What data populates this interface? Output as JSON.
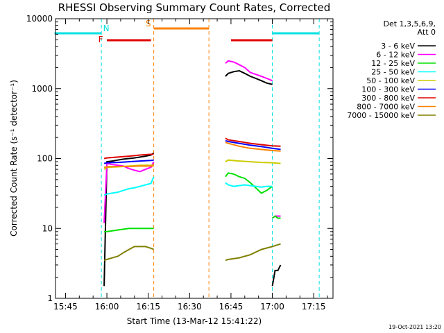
{
  "chart_data": {
    "type": "line",
    "title": "RHESSI Observing Summary Count Rates, Corrected",
    "xlabel": "Start Time (13-Mar-12 15:41:22)",
    "ylabel": "Corrected Count Rate (s⁻¹ detector⁻¹)",
    "y_scale": "log",
    "ylim": [
      1,
      10000
    ],
    "xlim": [
      "15:41:22",
      "17:22:00"
    ],
    "x_ticks": [
      "15:45",
      "16:00",
      "16:15",
      "16:30",
      "16:45",
      "17:00",
      "17:15"
    ],
    "y_ticks": [
      "1",
      "10",
      "100",
      "1000",
      "10000"
    ],
    "legend_header": [
      "Det 1,3,5,6,9,",
      "Att 0"
    ],
    "legend_position": "right",
    "timestamp": "19-Oct-2021 13:20",
    "flags": [
      {
        "label": "N",
        "color": "#00e0e0",
        "spans": [
          [
            "15:41",
            "15:58"
          ],
          [
            "17:00",
            "17:17"
          ]
        ]
      },
      {
        "label": "F",
        "color": "#e00000",
        "spans": [
          [
            "16:00",
            "16:16"
          ],
          [
            "16:45",
            "17:00"
          ]
        ]
      },
      {
        "label": "S",
        "color": "#ff8000",
        "spans": [
          [
            "16:17",
            "16:37"
          ]
        ]
      }
    ],
    "series": [
      {
        "name": "3 - 6 keV",
        "color": "#000000",
        "segments": [
          {
            "x": [
              "15:59",
              "16:00",
              "16:02",
              "16:04",
              "16:06",
              "16:08",
              "16:10",
              "16:12",
              "16:14",
              "16:16",
              "16:17"
            ],
            "y": [
              1.5,
              90,
              92,
              95,
              98,
              100,
              102,
              105,
              108,
              112,
              120
            ]
          },
          {
            "x": [
              "16:43",
              "16:44",
              "16:46",
              "16:48",
              "16:50",
              "16:52",
              "16:54",
              "16:56",
              "16:58",
              "17:00"
            ],
            "y": [
              1500,
              1650,
              1750,
              1800,
              1650,
              1500,
              1400,
              1300,
              1200,
              1150
            ]
          },
          {
            "x": [
              "17:00",
              "17:01",
              "17:02",
              "17:03"
            ],
            "y": [
              1.5,
              2.5,
              2.5,
              3
            ]
          }
        ]
      },
      {
        "name": "6 - 12 keV",
        "color": "#ff00ff",
        "segments": [
          {
            "x": [
              "15:59",
              "16:00",
              "16:02",
              "16:04",
              "16:06",
              "16:08",
              "16:10",
              "16:12",
              "16:14",
              "16:16",
              "16:17"
            ],
            "y": [
              12,
              85,
              82,
              80,
              78,
              72,
              68,
              65,
              70,
              75,
              90
            ]
          },
          {
            "x": [
              "16:43",
              "16:44",
              "16:46",
              "16:48",
              "16:50",
              "16:52",
              "16:54",
              "16:56",
              "16:58",
              "17:00"
            ],
            "y": [
              2300,
              2500,
              2400,
              2200,
              2000,
              1700,
              1600,
              1500,
              1400,
              1300
            ]
          },
          {
            "x": [
              "17:00",
              "17:01",
              "17:02",
              "17:03"
            ],
            "y": [
              14,
              15,
              15,
              15
            ]
          }
        ]
      },
      {
        "name": "12 - 25 keV",
        "color": "#00e000",
        "segments": [
          {
            "x": [
              "15:59",
              "16:00",
              "16:04",
              "16:08",
              "16:12",
              "16:16",
              "16:17"
            ],
            "y": [
              9,
              9,
              9.5,
              10,
              10,
              10,
              10
            ]
          },
          {
            "x": [
              "16:43",
              "16:44",
              "16:46",
              "16:48",
              "16:50",
              "16:52",
              "16:54",
              "16:56",
              "16:58",
              "17:00"
            ],
            "y": [
              55,
              62,
              60,
              55,
              52,
              45,
              38,
              32,
              35,
              40
            ]
          },
          {
            "x": [
              "17:00",
              "17:01",
              "17:02",
              "17:03"
            ],
            "y": [
              14,
              15,
              14,
              14
            ]
          }
        ]
      },
      {
        "name": "25 - 50 keV",
        "color": "#00ffff",
        "segments": [
          {
            "x": [
              "15:59",
              "16:00",
              "16:02",
              "16:04",
              "16:06",
              "16:08",
              "16:10",
              "16:12",
              "16:14",
              "16:16",
              "16:17"
            ],
            "y": [
              30,
              31,
              32,
              33,
              35,
              37,
              38,
              40,
              42,
              44,
              55
            ]
          },
          {
            "x": [
              "16:43",
              "16:44",
              "16:46",
              "16:48",
              "16:50",
              "16:52",
              "16:54",
              "16:56",
              "16:58",
              "17:00"
            ],
            "y": [
              45,
              42,
              40,
              41,
              42,
              41,
              40,
              39,
              40,
              40
            ]
          }
        ]
      },
      {
        "name": "50 - 100 keV",
        "color": "#cccc00",
        "segments": [
          {
            "x": [
              "15:59",
              "16:00",
              "16:04",
              "16:08",
              "16:12",
              "16:16",
              "16:17"
            ],
            "y": [
              70,
              75,
              76,
              78,
              80,
              80,
              80
            ]
          },
          {
            "x": [
              "16:43",
              "16:44",
              "16:48",
              "16:52",
              "16:56",
              "17:00",
              "17:03"
            ],
            "y": [
              90,
              95,
              92,
              90,
              88,
              87,
              85
            ]
          }
        ]
      },
      {
        "name": "100 - 300 keV",
        "color": "#0000ff",
        "segments": [
          {
            "x": [
              "15:59",
              "16:00",
              "16:04",
              "16:08",
              "16:12",
              "16:16",
              "16:17"
            ],
            "y": [
              85,
              87,
              88,
              90,
              92,
              94,
              95
            ]
          },
          {
            "x": [
              "16:43",
              "16:44",
              "16:48",
              "16:52",
              "16:56",
              "17:00",
              "17:03"
            ],
            "y": [
              180,
              175,
              165,
              155,
              148,
              140,
              135
            ]
          }
        ]
      },
      {
        "name": "300 - 800 keV",
        "color": "#e00000",
        "segments": [
          {
            "x": [
              "15:59",
              "16:00",
              "16:04",
              "16:08",
              "16:12",
              "16:16",
              "16:17"
            ],
            "y": [
              100,
              102,
              105,
              108,
              112,
              115,
              115
            ]
          },
          {
            "x": [
              "16:43",
              "16:44",
              "16:48",
              "16:52",
              "16:56",
              "17:00",
              "17:03"
            ],
            "y": [
              195,
              185,
              175,
              165,
              158,
              152,
              150
            ]
          }
        ]
      },
      {
        "name": "800 - 7000 keV",
        "color": "#ff8000",
        "segments": [
          {
            "x": [
              "15:59",
              "16:00",
              "16:04",
              "16:08",
              "16:12",
              "16:16",
              "16:17"
            ],
            "y": [
              75,
              76,
              77,
              77,
              78,
              78,
              78
            ]
          },
          {
            "x": [
              "16:43",
              "16:44",
              "16:48",
              "16:52",
              "16:56",
              "17:00",
              "17:03"
            ],
            "y": [
              170,
              165,
              150,
              140,
              135,
              130,
              128
            ]
          }
        ]
      },
      {
        "name": "7000 - 15000 keV",
        "color": "#808000",
        "segments": [
          {
            "x": [
              "15:59",
              "16:00",
              "16:02",
              "16:04",
              "16:06",
              "16:08",
              "16:10",
              "16:12",
              "16:14",
              "16:16",
              "16:17"
            ],
            "y": [
              3.5,
              3.6,
              3.8,
              4.0,
              4.5,
              5.0,
              5.5,
              5.5,
              5.5,
              5.2,
              5.0
            ]
          },
          {
            "x": [
              "16:43",
              "16:44",
              "16:48",
              "16:52",
              "16:56",
              "17:00",
              "17:03"
            ],
            "y": [
              3.5,
              3.6,
              3.8,
              4.2,
              5.0,
              5.5,
              6.0
            ]
          }
        ]
      }
    ]
  }
}
